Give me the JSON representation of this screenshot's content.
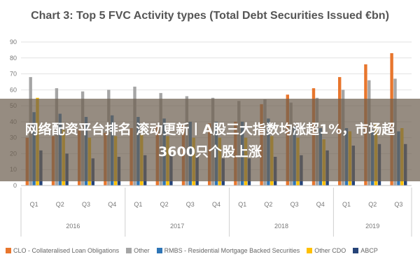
{
  "chart_data": {
    "type": "bar",
    "title": "Chart 3: Top 5 FVC Activity types (Total Debt Securities Issued €bn)",
    "categories": [
      "Q1",
      "Q2",
      "Q3",
      "Q4",
      "Q1",
      "Q2",
      "Q3",
      "Q4",
      "Q1",
      "Q2",
      "Q3",
      "Q4",
      "Q1",
      "Q2",
      "Q3"
    ],
    "years": [
      {
        "label": "2016",
        "quarters": 4
      },
      {
        "label": "2017",
        "quarters": 4
      },
      {
        "label": "2018",
        "quarters": 4
      },
      {
        "label": "2019",
        "quarters": 3
      }
    ],
    "ylim": [
      0,
      90
    ],
    "yticks": [
      0,
      10,
      20,
      30,
      40,
      50,
      60,
      70,
      80,
      90
    ],
    "grid": true,
    "legend_position": "bottom",
    "series": [
      {
        "name": "CLO - Collateralised Loan Obligations",
        "color": "#e8762d",
        "values": [
          30,
          31,
          35,
          33,
          36,
          37,
          38,
          39,
          40,
          51,
          57,
          61,
          68,
          76,
          83
        ]
      },
      {
        "name": "Other",
        "color": "#a5a5a5",
        "values": [
          68,
          61,
          59,
          60,
          62,
          58,
          56,
          55,
          53,
          54,
          52,
          55,
          60,
          66,
          67
        ]
      },
      {
        "name": "RMBS - Residential Mortgage Backed Securities",
        "color": "#2e75b6",
        "values": [
          46,
          45,
          43,
          44,
          43,
          42,
          40,
          40,
          40,
          42,
          37,
          36,
          36,
          35,
          34
        ]
      },
      {
        "name": "Other CDO",
        "color": "#ffc000",
        "values": [
          55,
          35,
          30,
          31,
          32,
          31,
          30,
          30,
          30,
          31,
          30,
          29,
          34,
          39,
          36
        ]
      },
      {
        "name": "ABCP",
        "color": "#264478",
        "values": [
          22,
          20,
          17,
          18,
          19,
          20,
          18,
          17,
          17,
          18,
          19,
          22,
          25,
          26,
          26
        ]
      }
    ]
  },
  "overlay": {
    "text": "网络配资平台排名 滚动更新丨A股三大指数均涨超1%，市场超3600只个股上涨"
  }
}
